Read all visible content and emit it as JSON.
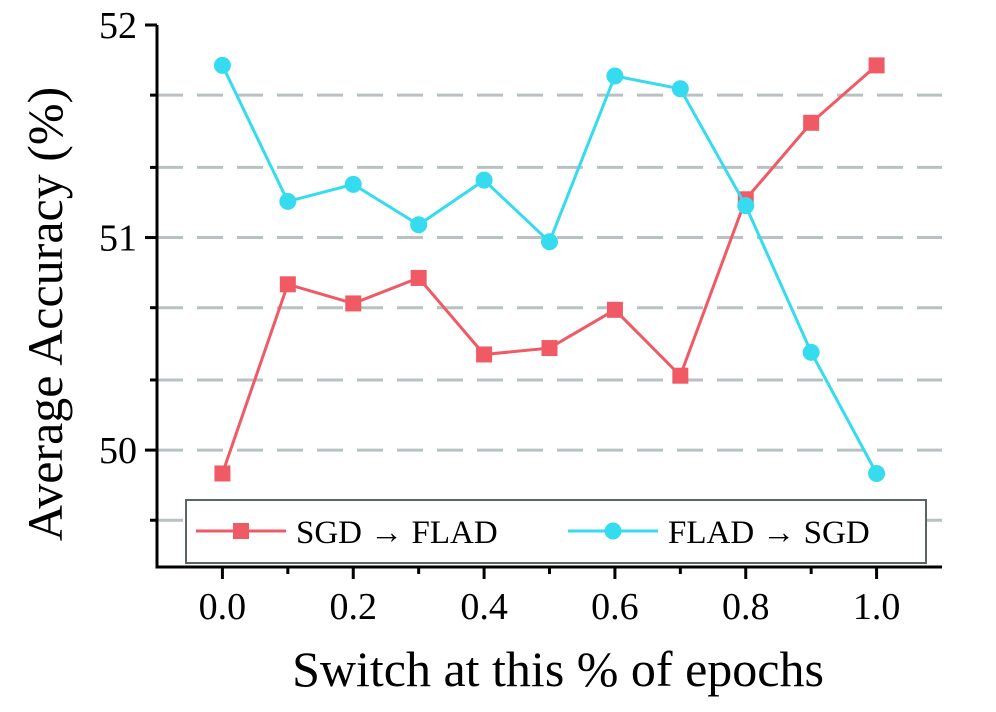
{
  "chart_data": {
    "type": "line",
    "title": "",
    "xlabel": "Switch at this % of epochs",
    "ylabel": "Average Accuracy (%)",
    "x": [
      0.0,
      0.1,
      0.2,
      0.3,
      0.4,
      0.5,
      0.6,
      0.7,
      0.8,
      0.9,
      1.0
    ],
    "xlim": [
      -0.1,
      1.1
    ],
    "ylim": [
      49.45,
      52.0
    ],
    "x_ticks": [
      0.0,
      0.2,
      0.4,
      0.6,
      0.8,
      1.0
    ],
    "x_tick_labels": [
      "0.0",
      "0.2",
      "0.4",
      "0.6",
      "0.8",
      "1.0"
    ],
    "y_ticks": [
      50,
      51,
      52
    ],
    "y_tick_labels": [
      "50",
      "51",
      "52"
    ],
    "y_gridlines": [
      49.67,
      50.0,
      50.33,
      50.67,
      51.0,
      51.33,
      51.67
    ],
    "grid": "dashed horizontal",
    "legend_position": "bottom",
    "series": [
      {
        "name": "SGD → FLAD",
        "marker": "square",
        "color": "#f05a64",
        "values": [
          49.89,
          50.78,
          50.69,
          50.81,
          50.45,
          50.48,
          50.66,
          50.35,
          51.18,
          51.54,
          51.81
        ]
      },
      {
        "name": "FLAD → SGD",
        "marker": "circle",
        "color": "#35dbef",
        "values": [
          51.81,
          51.17,
          51.25,
          51.06,
          51.27,
          50.98,
          51.76,
          51.7,
          51.15,
          50.46,
          49.89
        ]
      }
    ]
  }
}
